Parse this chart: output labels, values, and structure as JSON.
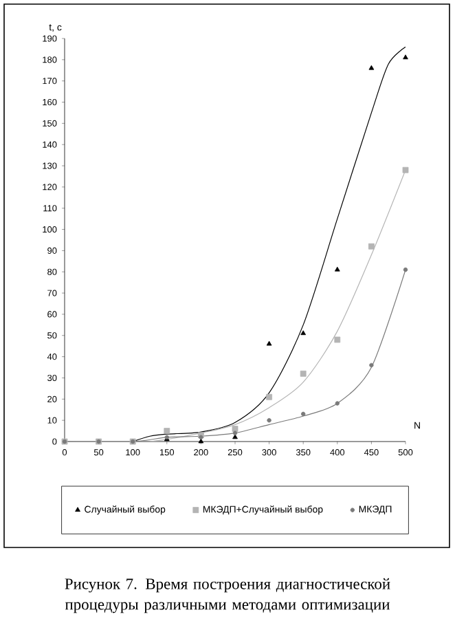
{
  "chart_data": {
    "type": "scatter",
    "title": "Рисунок 7. Время построения диагностической процедуры различными методами оптимизации",
    "xlabel": "N",
    "ylabel": "t, c",
    "xlim": [
      0,
      500
    ],
    "xticks": [
      0,
      50,
      100,
      150,
      200,
      250,
      300,
      350,
      400,
      450,
      500
    ],
    "ylim": [
      0,
      190
    ],
    "yticks": [
      0,
      10,
      20,
      30,
      40,
      50,
      60,
      70,
      80,
      90,
      100,
      110,
      120,
      130,
      140,
      150,
      160,
      170,
      180,
      190
    ],
    "legend": "bottom",
    "grid": false,
    "series": [
      {
        "name": "Случайный выбор",
        "color": "#000000",
        "marker": "triangle",
        "x": [
          150,
          200,
          250,
          300,
          350,
          400,
          450,
          500
        ],
        "values": [
          1,
          0,
          2,
          46,
          51,
          81,
          176,
          181
        ]
      },
      {
        "name": "МКЭДП+Случайный выбор",
        "color": "#b4b4b4",
        "marker": "square",
        "x": [
          0,
          50,
          100,
          150,
          200,
          250,
          300,
          350,
          400,
          450,
          500
        ],
        "values": [
          0,
          0,
          0,
          5,
          3,
          6,
          21,
          32,
          48,
          92,
          128
        ]
      },
      {
        "name": "МКЭДП",
        "color": "#7a7a7a",
        "marker": "circle",
        "x": [
          0,
          50,
          100,
          150,
          200,
          250,
          300,
          350,
          400,
          450,
          500
        ],
        "values": [
          0,
          0,
          0,
          2,
          2,
          4,
          10,
          13,
          18,
          36,
          81
        ]
      },
      {
        "type": "line",
        "color": "#000000",
        "x": [
          100,
          125,
          150,
          200,
          250,
          300,
          350,
          400,
          450,
          475,
          500
        ],
        "values": [
          0,
          2.5,
          3.5,
          4.5,
          9,
          23,
          55,
          105,
          155,
          178,
          186
        ]
      },
      {
        "type": "line",
        "color": "#b4b4b4",
        "x": [
          125,
          150,
          200,
          250,
          300,
          350,
          400,
          450,
          500
        ],
        "values": [
          0,
          1,
          4,
          8,
          16,
          28,
          52,
          88,
          128
        ]
      },
      {
        "type": "line",
        "color": "#7a7a7a",
        "x": [
          0,
          100,
          150,
          200,
          250,
          300,
          350,
          400,
          450,
          500
        ],
        "values": [
          0,
          0,
          2,
          2.5,
          4,
          8,
          12,
          18,
          35,
          81
        ]
      }
    ]
  }
}
